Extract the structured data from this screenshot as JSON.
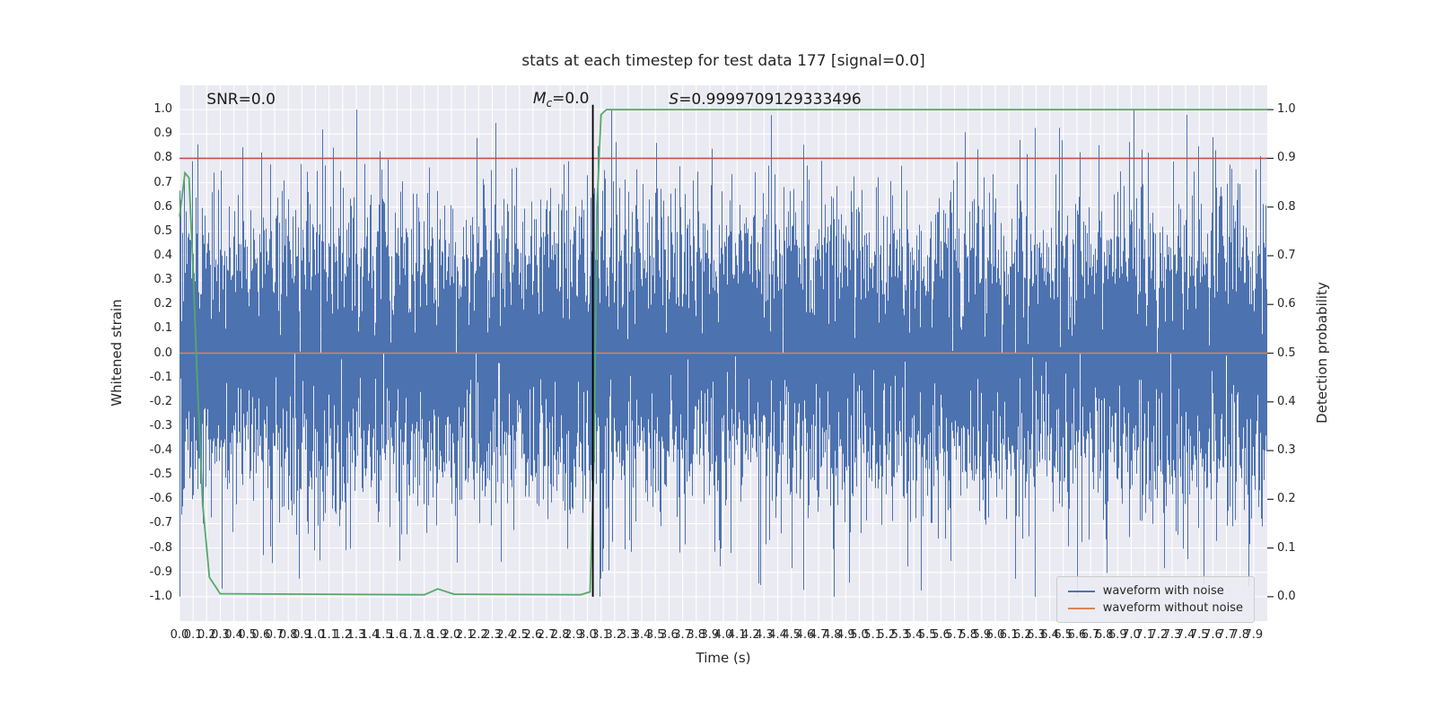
{
  "colors": {
    "figure_bg": "#ffffff",
    "plot_bg": "#eaeaf2",
    "grid": "#ffffff",
    "text": "#262626",
    "noise_blue": "#4c72b0",
    "clean_orange": "#dd8452",
    "prob_green": "#55a868",
    "threshold_red": "#c44e52",
    "marker_black": "#000000"
  },
  "chart_data": {
    "type": "line",
    "title": "stats at each timestep for test data 177 [signal=0.0]",
    "xlabel": "Time (s)",
    "ylabel_left": "Whitened strain",
    "ylabel_right": "Detection probability",
    "xlim": [
      0,
      8
    ],
    "ylim_left": [
      -1.1,
      1.1
    ],
    "ylim_right": [
      -0.05,
      1.05
    ],
    "grid": true,
    "x_ticks": {
      "start": 0.0,
      "step": 0.1,
      "count": 80,
      "format": "0.1f"
    },
    "y_ticks_left": {
      "start": -1.0,
      "step": 0.1,
      "count": 21,
      "format": "0.1f"
    },
    "y_ticks_right": {
      "start": 0.0,
      "step": 0.1,
      "count": 11,
      "format": "0.1f"
    },
    "annotations": [
      {
        "pre": "SNR",
        "sub": "",
        "post": "=0.0",
        "italic": false,
        "x": 0.2,
        "y": 1.04
      },
      {
        "pre": "M",
        "sub": "c",
        "post": "=0.0",
        "italic": true,
        "x": 2.6,
        "y": 1.04
      },
      {
        "pre": "S",
        "sub": "",
        "post": "=0.9999709129333496",
        "italic": true,
        "x": 3.6,
        "y": 1.04
      }
    ],
    "series": [
      {
        "name": "waveform with noise",
        "kind": "noise",
        "color": "#4c72b0",
        "params": {
          "seed": 177,
          "std": 0.3,
          "samples_per_column": 8,
          "clip": [
            -1,
            1
          ]
        },
        "description": "dense zero-mean gaussian whitened strain noise spanning full time axis, occasional spikes clipped at +/-1"
      },
      {
        "name": "waveform without noise",
        "kind": "hline",
        "color": "#dd8452",
        "y": 0.0,
        "width": 1.6,
        "description": "flat zero line since signal=0.0"
      },
      {
        "name": "detection threshold",
        "kind": "hline",
        "color": "#c44e52",
        "y": 0.8,
        "width": 1.6,
        "description": "horizontal red line at strain 0.8 (detection probability 0.9)"
      },
      {
        "name": "detection probability",
        "kind": "prob_line",
        "axis": "right",
        "color": "#55a868",
        "points": [
          [
            0.0,
            0.78
          ],
          [
            0.04,
            0.87
          ],
          [
            0.07,
            0.86
          ],
          [
            0.1,
            0.67
          ],
          [
            0.13,
            0.45
          ],
          [
            0.17,
            0.19
          ],
          [
            0.22,
            0.04
          ],
          [
            0.3,
            0.006
          ],
          [
            1.8,
            0.004
          ],
          [
            1.9,
            0.016
          ],
          [
            2.02,
            0.005
          ],
          [
            2.95,
            0.004
          ],
          [
            3.02,
            0.01
          ],
          [
            3.05,
            0.3
          ],
          [
            3.07,
            0.8
          ],
          [
            3.1,
            0.99
          ],
          [
            3.14,
            1.0
          ],
          [
            8.0,
            1.0
          ]
        ]
      },
      {
        "name": "event time marker",
        "kind": "vline",
        "color": "#000000",
        "x": 3.04,
        "y_range": [
          -1.0,
          1.02
        ],
        "width": 1.8
      }
    ],
    "legend": {
      "position": "lower right",
      "entries": [
        {
          "label": "waveform with noise",
          "color": "#4c72b0"
        },
        {
          "label": "waveform without noise",
          "color": "#dd8452"
        }
      ]
    }
  }
}
